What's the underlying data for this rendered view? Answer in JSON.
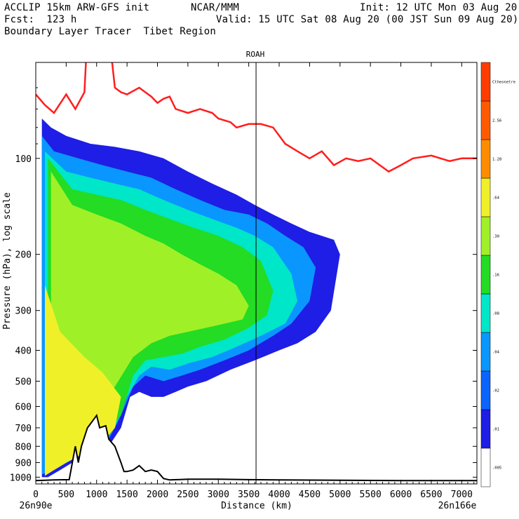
{
  "header": {
    "line1_left": "ACCLIP 15km ARW-GFS init",
    "line1_mid": "NCAR/MMM",
    "line1_right": "Init: 12 UTC Mon 03 Aug 20",
    "line2_left": "Fcst:  123 h",
    "line2_right": "Valid: 15 UTC Sat 08 Aug 20 (00 JST Sun 09 Aug 20)",
    "line3_left": "Boundary Layer Tracer  Tibet Region"
  },
  "colors": {
    "tropopause_line": "#ff1e1e",
    "terrain_line": "#000000",
    "section_marker": "#000000"
  },
  "chart_data": {
    "type": "heatmap",
    "title": "ROAH",
    "xlabel": "Distance (km)",
    "ylabel": "Pressure (hPa), log scale",
    "x_left_label": "26n90e",
    "x_right_label": "26n166e",
    "xlim": [
      0,
      7250
    ],
    "ylim": [
      1050,
      50
    ],
    "y_scale": "log",
    "x_ticks": [
      0,
      500,
      1000,
      1500,
      2000,
      2500,
      3000,
      3500,
      4000,
      4500,
      5000,
      5500,
      6000,
      6500,
      7000
    ],
    "y_ticks": [
      100,
      200,
      300,
      400,
      500,
      600,
      700,
      800,
      900,
      1000
    ],
    "vertical_marker_km": 3620,
    "legend": {
      "placement": "right",
      "bins": [
        {
          "color": "#ffffff",
          "label": ".005"
        },
        {
          "color": "#1e1ee6",
          "label": ".01"
        },
        {
          "color": "#0a64ff",
          "label": ".02"
        },
        {
          "color": "#0a96ff",
          "label": ".04"
        },
        {
          "color": "#00e6c8",
          "label": ".08"
        },
        {
          "color": "#23dc23",
          "label": ".16"
        },
        {
          "color": "#a0f028",
          "label": ".30"
        },
        {
          "color": "#f0f028",
          "label": ".64"
        },
        {
          "color": "#ff8c00",
          "label": "1.28"
        },
        {
          "color": "#ff5a00",
          "label": "2.56"
        },
        {
          "color": "#ff3c00",
          "label": "Ctheonetre"
        }
      ]
    },
    "tropopause": {
      "x": [
        0,
        150,
        300,
        500,
        650,
        800,
        850,
        900,
        1000,
        1150,
        1200,
        1300,
        1400,
        1500,
        1700,
        1800,
        1900,
        2000,
        2100,
        2200,
        2300,
        2500,
        2700,
        2900,
        3000,
        3200,
        3300,
        3500,
        3700,
        3900,
        4100,
        4300,
        4500,
        4700,
        4900,
        5100,
        5300,
        5500,
        5800,
        6000,
        6200,
        6500,
        6800,
        7000,
        7250
      ],
      "p": [
        63,
        68,
        72,
        63,
        70,
        62,
        40,
        30,
        40,
        30,
        40,
        60,
        62,
        63,
        60,
        62,
        64,
        67,
        65,
        64,
        70,
        72,
        70,
        72,
        75,
        77,
        80,
        78,
        78,
        80,
        90,
        95,
        100,
        95,
        105,
        100,
        102,
        100,
        110,
        105,
        100,
        98,
        102,
        100,
        100
      ]
    },
    "terrain": {
      "x": [
        0,
        300,
        550,
        650,
        700,
        750,
        850,
        950,
        1000,
        1050,
        1150,
        1200,
        1300,
        1400,
        1450,
        1500,
        1600,
        1700,
        1800,
        1900,
        2000,
        2100,
        2200,
        2500,
        3000,
        3500,
        4000,
        5000,
        6000,
        7000,
        7250
      ],
      "p": [
        1025,
        1020,
        1018,
        800,
        900,
        800,
        700,
        660,
        640,
        700,
        690,
        760,
        800,
        900,
        960,
        960,
        950,
        920,
        960,
        950,
        960,
        1010,
        1020,
        1015,
        1015,
        1018,
        1020,
        1022,
        1025,
        1025,
        1025
      ]
    },
    "tracer_layers": [
      {
        "bin": ".01",
        "x": [
          100,
          250,
          500,
          900,
          1300,
          1700,
          2100,
          2500,
          2900,
          3300,
          3600,
          3900,
          4200,
          4500,
          4900,
          5000,
          4850,
          4600,
          4300,
          4000,
          3600,
          3200,
          2800,
          2500,
          2300,
          2100,
          1900,
          1700,
          1550,
          1400,
          1200,
          1000,
          800,
          600,
          400,
          200,
          100
        ],
        "p": [
          75,
          80,
          85,
          90,
          92,
          95,
          100,
          110,
          120,
          130,
          140,
          150,
          160,
          170,
          180,
          200,
          300,
          350,
          380,
          400,
          430,
          460,
          500,
          520,
          540,
          560,
          560,
          540,
          560,
          700,
          800,
          850,
          880,
          900,
          950,
          1000,
          1000
        ]
      },
      {
        "bin": ".04",
        "x": [
          100,
          300,
          700,
          1100,
          1500,
          1900,
          2300,
          2700,
          3100,
          3500,
          3800,
          4100,
          4400,
          4600,
          4500,
          4200,
          3900,
          3500,
          3100,
          2700,
          2400,
          2100,
          1800,
          1600,
          1400,
          1200,
          900,
          600,
          300,
          100
        ],
        "p": [
          85,
          95,
          100,
          105,
          110,
          115,
          125,
          135,
          145,
          150,
          160,
          175,
          190,
          220,
          280,
          330,
          360,
          400,
          430,
          460,
          480,
          500,
          480,
          520,
          640,
          760,
          820,
          880,
          950,
          980
        ]
      },
      {
        "bin": ".08",
        "x": [
          150,
          500,
          900,
          1300,
          1700,
          2100,
          2500,
          2900,
          3300,
          3600,
          3900,
          4200,
          4300,
          4100,
          3700,
          3300,
          2900,
          2500,
          2200,
          1900,
          1700,
          1500,
          1300,
          1000,
          700,
          400,
          150
        ],
        "p": [
          95,
          110,
          115,
          120,
          125,
          135,
          145,
          155,
          165,
          175,
          190,
          230,
          280,
          330,
          360,
          390,
          420,
          440,
          460,
          450,
          480,
          560,
          700,
          780,
          850,
          920,
          960
        ]
      },
      {
        "bin": ".16",
        "x": [
          200,
          600,
          1000,
          1400,
          1800,
          2200,
          2600,
          3000,
          3400,
          3700,
          3900,
          3800,
          3500,
          3100,
          2700,
          2400,
          2100,
          1800,
          1600,
          1400,
          1100,
          800,
          500,
          200
        ],
        "p": [
          100,
          125,
          130,
          135,
          145,
          155,
          165,
          175,
          190,
          210,
          260,
          310,
          340,
          370,
          390,
          410,
          420,
          430,
          480,
          640,
          750,
          820,
          900,
          950
        ]
      },
      {
        "bin": ".30",
        "x": [
          250,
          600,
          1000,
          1400,
          1800,
          2100,
          2400,
          2700,
          3000,
          3300,
          3500,
          3400,
          3100,
          2800,
          2500,
          2200,
          1900,
          1600,
          1300,
          1000,
          700,
          400,
          250
        ],
        "p": [
          110,
          140,
          150,
          160,
          175,
          185,
          200,
          215,
          230,
          250,
          290,
          320,
          330,
          340,
          350,
          360,
          380,
          420,
          520,
          620,
          700,
          800,
          880
        ]
      },
      {
        "bin": ".64",
        "x": [
          150,
          400,
          800,
          1100,
          1400,
          1300,
          1100,
          900,
          700,
          500,
          300,
          150
        ],
        "p": [
          250,
          350,
          420,
          470,
          560,
          700,
          780,
          830,
          860,
          900,
          950,
          990
        ]
      }
    ]
  }
}
